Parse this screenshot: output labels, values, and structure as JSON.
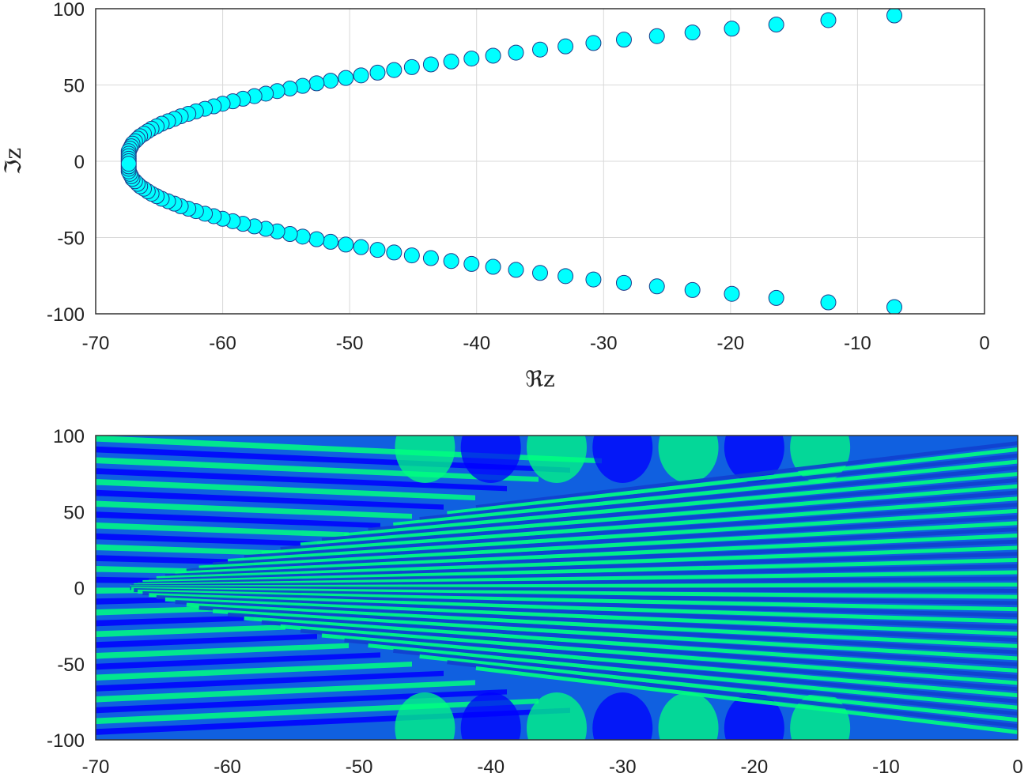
{
  "chart_data": [
    {
      "type": "scatter",
      "xlabel": "ℜz",
      "ylabel": "ℑz",
      "xlim": [
        -70,
        0
      ],
      "ylim": [
        -100,
        100
      ],
      "xticks": [
        "-70",
        "-60",
        "-50",
        "-40",
        "-30",
        "-20",
        "-10",
        "0"
      ],
      "yticks": [
        "100",
        "50",
        "0",
        "-50",
        "-100"
      ],
      "grid": true,
      "marker_color": "#00ffff",
      "marker_edge_color": "#1e3a8a",
      "points": [
        [
          -7.1,
          95.6
        ],
        [
          -12.3,
          92.5
        ],
        [
          -16.4,
          89.6
        ],
        [
          -19.9,
          86.9
        ],
        [
          -23.0,
          84.4
        ],
        [
          -25.8,
          82.0
        ],
        [
          -28.4,
          79.7
        ],
        [
          -30.8,
          77.5
        ],
        [
          -33.0,
          75.3
        ],
        [
          -35.0,
          73.2
        ],
        [
          -36.9,
          71.2
        ],
        [
          -38.7,
          69.2
        ],
        [
          -40.4,
          67.3
        ],
        [
          -42.0,
          65.4
        ],
        [
          -43.6,
          63.5
        ],
        [
          -45.1,
          61.7
        ],
        [
          -46.5,
          59.8
        ],
        [
          -47.8,
          58.1
        ],
        [
          -49.1,
          56.3
        ],
        [
          -50.3,
          54.6
        ],
        [
          -51.5,
          52.8
        ],
        [
          -52.6,
          51.1
        ],
        [
          -53.7,
          49.4
        ],
        [
          -54.7,
          47.7
        ],
        [
          -55.7,
          46.0
        ],
        [
          -56.6,
          44.3
        ],
        [
          -57.5,
          42.7
        ],
        [
          -58.4,
          41.0
        ],
        [
          -59.2,
          39.3
        ],
        [
          -60.0,
          37.7
        ],
        [
          -60.7,
          36.0
        ],
        [
          -61.4,
          34.4
        ],
        [
          -62.1,
          32.7
        ],
        [
          -62.7,
          31.1
        ],
        [
          -63.3,
          29.5
        ],
        [
          -63.8,
          27.8
        ],
        [
          -64.3,
          26.2
        ],
        [
          -64.8,
          24.6
        ],
        [
          -65.2,
          22.9
        ],
        [
          -65.6,
          21.3
        ],
        [
          -65.9,
          19.7
        ],
        [
          -66.2,
          18.0
        ],
        [
          -66.5,
          16.4
        ],
        [
          -66.7,
          14.8
        ],
        [
          -66.9,
          13.1
        ],
        [
          -67.1,
          11.5
        ],
        [
          -67.2,
          9.8
        ],
        [
          -67.3,
          8.2
        ],
        [
          -67.4,
          6.6
        ],
        [
          -67.4,
          4.9
        ],
        [
          -67.4,
          3.3
        ],
        [
          -67.4,
          1.6
        ],
        [
          -67.4,
          0.0
        ],
        [
          -7.1,
          -95.6
        ],
        [
          -12.3,
          -92.5
        ],
        [
          -16.4,
          -89.6
        ],
        [
          -19.9,
          -86.9
        ],
        [
          -23.0,
          -84.4
        ],
        [
          -25.8,
          -82.0
        ],
        [
          -28.4,
          -79.7
        ],
        [
          -30.8,
          -77.5
        ],
        [
          -33.0,
          -75.3
        ],
        [
          -35.0,
          -73.2
        ],
        [
          -36.9,
          -71.2
        ],
        [
          -38.7,
          -69.2
        ],
        [
          -40.4,
          -67.3
        ],
        [
          -42.0,
          -65.4
        ],
        [
          -43.6,
          -63.5
        ],
        [
          -45.1,
          -61.7
        ],
        [
          -46.5,
          -59.8
        ],
        [
          -47.8,
          -58.1
        ],
        [
          -49.1,
          -56.3
        ],
        [
          -50.3,
          -54.6
        ],
        [
          -51.5,
          -52.8
        ],
        [
          -52.6,
          -51.1
        ],
        [
          -53.7,
          -49.4
        ],
        [
          -54.7,
          -47.7
        ],
        [
          -55.7,
          -46.0
        ],
        [
          -56.6,
          -44.3
        ],
        [
          -57.5,
          -42.7
        ],
        [
          -58.4,
          -41.0
        ],
        [
          -59.2,
          -39.3
        ],
        [
          -60.0,
          -37.7
        ],
        [
          -60.7,
          -36.0
        ],
        [
          -61.4,
          -34.4
        ],
        [
          -62.1,
          -32.7
        ],
        [
          -62.7,
          -31.1
        ],
        [
          -63.3,
          -29.5
        ],
        [
          -63.8,
          -27.8
        ],
        [
          -64.3,
          -26.2
        ],
        [
          -64.8,
          -24.6
        ],
        [
          -65.2,
          -22.9
        ],
        [
          -65.6,
          -21.3
        ],
        [
          -65.9,
          -19.7
        ],
        [
          -66.2,
          -18.0
        ],
        [
          -66.5,
          -16.4
        ],
        [
          -66.7,
          -14.8
        ],
        [
          -66.9,
          -13.1
        ],
        [
          -67.1,
          -11.5
        ],
        [
          -67.2,
          -9.8
        ],
        [
          -67.3,
          -8.2
        ],
        [
          -67.4,
          -6.6
        ],
        [
          -67.4,
          -4.9
        ],
        [
          -67.4,
          -3.3
        ],
        [
          -67.4,
          -1.6
        ]
      ]
    },
    {
      "type": "heatmap",
      "xlabel": "",
      "ylabel": "",
      "xlim": [
        -70,
        0
      ],
      "ylim": [
        -100,
        100
      ],
      "xticks": [
        "-70",
        "-60",
        "-50",
        "-40",
        "-30",
        "-20",
        "-10",
        "0"
      ],
      "yticks": [
        "100",
        "50",
        "0",
        "-50",
        "-100"
      ],
      "grid": false,
      "colormap": [
        "#0000ff",
        "#00ff80"
      ],
      "band_count": 48,
      "wedge_count": 28
    }
  ]
}
